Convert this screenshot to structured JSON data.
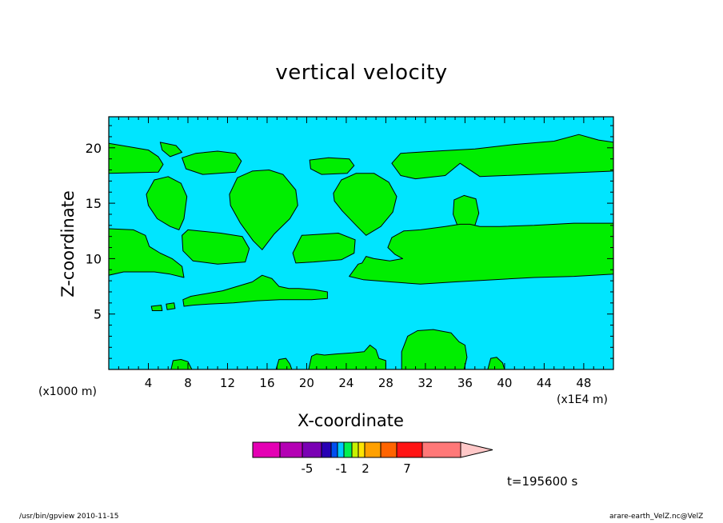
{
  "chart_data": {
    "type": "contour",
    "title": "vertical velocity",
    "xlabel": "X-coordinate",
    "ylabel": "Z-coordinate",
    "x_scale_label": "(x1000 m)",
    "x_unit_label": "(x1E4 m)",
    "time_label": "t=195600 s",
    "xlim": [
      0,
      51
    ],
    "ylim": [
      0,
      22.8
    ],
    "x_ticks": [
      4,
      8,
      12,
      16,
      20,
      24,
      28,
      32,
      36,
      40,
      44,
      48
    ],
    "y_ticks": [
      5,
      10,
      15,
      20
    ],
    "colors": {
      "background_field": "#00e5ff",
      "updraft_field": "#00ee00",
      "contour_line": "#000000"
    },
    "updraft_regions": [
      {
        "name": "upper band left",
        "polygon": [
          [
            0,
            20.4
          ],
          [
            2,
            20.1
          ],
          [
            4,
            19.8
          ],
          [
            5,
            19.2
          ],
          [
            5.5,
            18.5
          ],
          [
            5,
            17.8
          ],
          [
            0,
            17.7
          ]
        ]
      },
      {
        "name": "upper band right",
        "polygon": [
          [
            29.5,
            19.5
          ],
          [
            33,
            19.7
          ],
          [
            37,
            19.9
          ],
          [
            41,
            20.3
          ],
          [
            45,
            20.6
          ],
          [
            47.5,
            21.2
          ],
          [
            49.5,
            20.7
          ],
          [
            51,
            20.5
          ],
          [
            51,
            17.9
          ],
          [
            40,
            17.5
          ],
          [
            37.5,
            17.4
          ],
          [
            35.5,
            18.6
          ],
          [
            34,
            17.5
          ],
          [
            31,
            17.2
          ],
          [
            29.5,
            17.5
          ],
          [
            28.6,
            18.6
          ]
        ]
      },
      {
        "name": "cap near x=7",
        "polygon": [
          [
            5.2,
            20.5
          ],
          [
            6.8,
            20.2
          ],
          [
            7.4,
            19.6
          ],
          [
            6.2,
            19.2
          ],
          [
            5.4,
            19.8
          ]
        ]
      },
      {
        "name": "cap near x=12",
        "polygon": [
          [
            7.4,
            19.1
          ],
          [
            8.8,
            19.5
          ],
          [
            11,
            19.7
          ],
          [
            12.8,
            19.5
          ],
          [
            13.4,
            18.8
          ],
          [
            12.8,
            17.8
          ],
          [
            9.5,
            17.6
          ],
          [
            7.8,
            18.1
          ]
        ]
      },
      {
        "name": "cap near x=23",
        "polygon": [
          [
            20.3,
            18.9
          ],
          [
            22.2,
            19.1
          ],
          [
            24.3,
            19.0
          ],
          [
            24.8,
            18.4
          ],
          [
            24.1,
            17.7
          ],
          [
            21.5,
            17.6
          ],
          [
            20.4,
            18.1
          ]
        ]
      },
      {
        "name": "dome x=6",
        "polygon": [
          [
            3.8,
            15.8
          ],
          [
            4.6,
            17.1
          ],
          [
            6,
            17.4
          ],
          [
            7.3,
            16.8
          ],
          [
            7.9,
            15.6
          ],
          [
            7.6,
            13.6
          ],
          [
            7.1,
            12.6
          ],
          [
            6.2,
            12.9
          ],
          [
            4.9,
            13.6
          ],
          [
            4,
            14.8
          ]
        ]
      },
      {
        "name": "dome x=15.5",
        "polygon": [
          [
            12.2,
            15.8
          ],
          [
            13,
            17.3
          ],
          [
            14.5,
            17.9
          ],
          [
            16.2,
            18.0
          ],
          [
            17.6,
            17.6
          ],
          [
            18.9,
            16.2
          ],
          [
            19.1,
            14.8
          ],
          [
            18.3,
            13.6
          ],
          [
            16.7,
            12.2
          ],
          [
            15.5,
            10.8
          ],
          [
            14.6,
            11.6
          ],
          [
            13.3,
            13.2
          ],
          [
            12.3,
            14.8
          ]
        ]
      },
      {
        "name": "dome x=26",
        "polygon": [
          [
            22.7,
            15.9
          ],
          [
            23.5,
            17.1
          ],
          [
            25,
            17.7
          ],
          [
            26.8,
            17.7
          ],
          [
            28.3,
            16.9
          ],
          [
            29.1,
            15.6
          ],
          [
            28.7,
            14.2
          ],
          [
            27.5,
            12.9
          ],
          [
            26,
            12.1
          ],
          [
            25.1,
            12.9
          ],
          [
            23.6,
            14.3
          ],
          [
            22.8,
            15.2
          ]
        ]
      },
      {
        "name": "plume x=36",
        "polygon": [
          [
            34.9,
            15.3
          ],
          [
            35.9,
            15.7
          ],
          [
            37.1,
            15.4
          ],
          [
            37.4,
            14.1
          ],
          [
            36.9,
            12.7
          ],
          [
            36,
            11.2
          ],
          [
            35.4,
            12.6
          ],
          [
            34.8,
            14
          ]
        ]
      },
      {
        "name": "mid band left",
        "polygon": [
          [
            0,
            12.7
          ],
          [
            2.5,
            12.6
          ],
          [
            3.7,
            12.1
          ],
          [
            4.1,
            11.1
          ],
          [
            5.2,
            10.5
          ],
          [
            6.4,
            10.0
          ],
          [
            7.4,
            9.3
          ],
          [
            7.6,
            8.3
          ],
          [
            6.2,
            8.6
          ],
          [
            4.6,
            8.8
          ],
          [
            3.2,
            8.8
          ],
          [
            1.5,
            8.8
          ],
          [
            0,
            8.5
          ]
        ]
      },
      {
        "name": "mid block x=11",
        "polygon": [
          [
            7.4,
            12.1
          ],
          [
            8,
            12.6
          ],
          [
            11.3,
            12.3
          ],
          [
            13.5,
            12.0
          ],
          [
            14.2,
            10.9
          ],
          [
            13.8,
            9.7
          ],
          [
            11,
            9.5
          ],
          [
            8.5,
            9.8
          ],
          [
            7.5,
            10.7
          ]
        ]
      },
      {
        "name": "mid block x=22",
        "polygon": [
          [
            19.5,
            12.1
          ],
          [
            23.2,
            12.3
          ],
          [
            24.9,
            11.7
          ],
          [
            24.8,
            10.5
          ],
          [
            23.5,
            9.9
          ],
          [
            20.7,
            9.7
          ],
          [
            18.9,
            9.6
          ],
          [
            18.6,
            10.5
          ]
        ]
      },
      {
        "name": "mid band right",
        "polygon": [
          [
            25.2,
            9.5
          ],
          [
            24.3,
            8.4
          ],
          [
            25.7,
            8.1
          ],
          [
            28.5,
            7.9
          ],
          [
            31.5,
            7.7
          ],
          [
            35,
            7.9
          ],
          [
            39,
            8.1
          ],
          [
            43,
            8.3
          ],
          [
            47,
            8.4
          ],
          [
            51,
            8.6
          ],
          [
            51,
            13.2
          ],
          [
            47,
            13.2
          ],
          [
            43,
            13.0
          ],
          [
            39.5,
            12.9
          ],
          [
            37.5,
            12.9
          ],
          [
            36.5,
            13.1
          ],
          [
            35.5,
            13.1
          ],
          [
            34,
            12.9
          ],
          [
            31.5,
            12.6
          ],
          [
            29.8,
            12.5
          ],
          [
            28.6,
            11.9
          ],
          [
            28.2,
            11.0
          ],
          [
            28.9,
            10.4
          ],
          [
            29.7,
            10.0
          ],
          [
            28.4,
            9.8
          ],
          [
            26.8,
            10.0
          ],
          [
            26,
            10.2
          ],
          [
            25.6,
            9.6
          ]
        ]
      },
      {
        "name": "diagonal band",
        "polygon": [
          [
            7.5,
            6.3
          ],
          [
            8.3,
            6.6
          ],
          [
            11.5,
            7.1
          ],
          [
            14.5,
            7.9
          ],
          [
            15.5,
            8.5
          ],
          [
            16.5,
            8.2
          ],
          [
            17.2,
            7.5
          ],
          [
            18.2,
            7.3
          ],
          [
            19.2,
            7.3
          ],
          [
            20.8,
            7.2
          ],
          [
            22.1,
            7.0
          ],
          [
            22.1,
            6.4
          ],
          [
            20.5,
            6.3
          ],
          [
            18.7,
            6.3
          ],
          [
            17.3,
            6.3
          ],
          [
            15,
            6.2
          ],
          [
            12.6,
            6.0
          ],
          [
            10.1,
            5.9
          ],
          [
            8.5,
            5.8
          ],
          [
            7.6,
            5.7
          ]
        ]
      },
      {
        "name": "speck x=6",
        "polygon": [
          [
            5.8,
            5.9
          ],
          [
            6.6,
            6.0
          ],
          [
            6.7,
            5.5
          ],
          [
            5.9,
            5.4
          ]
        ]
      },
      {
        "name": "speck x=4.6",
        "polygon": [
          [
            4.3,
            5.7
          ],
          [
            5.3,
            5.8
          ],
          [
            5.4,
            5.3
          ],
          [
            4.4,
            5.3
          ]
        ]
      },
      {
        "name": "foot x=7",
        "polygon": [
          [
            6.3,
            0
          ],
          [
            6.5,
            0.8
          ],
          [
            7.3,
            0.9
          ],
          [
            8,
            0.7
          ],
          [
            8.4,
            0
          ]
        ]
      },
      {
        "name": "foot x=18",
        "polygon": [
          [
            16.9,
            0
          ],
          [
            17.2,
            0.9
          ],
          [
            17.9,
            1.0
          ],
          [
            18.3,
            0.5
          ],
          [
            18.5,
            0
          ]
        ]
      },
      {
        "name": "foot x=20-22",
        "polygon": [
          [
            20.5,
            1.2
          ],
          [
            21,
            1.4
          ],
          [
            21.8,
            1.3
          ],
          [
            23,
            1.4
          ],
          [
            24.6,
            1.5
          ],
          [
            25.8,
            1.6
          ],
          [
            26.4,
            2.2
          ],
          [
            27,
            1.8
          ],
          [
            27.3,
            1.0
          ],
          [
            28,
            0.8
          ],
          [
            28,
            0
          ],
          [
            20.2,
            0
          ]
        ]
      },
      {
        "name": "foot x=29-34",
        "polygon": [
          [
            29.6,
            0
          ],
          [
            29.6,
            1.6
          ],
          [
            30.2,
            3.0
          ],
          [
            31.2,
            3.5
          ],
          [
            32.8,
            3.6
          ],
          [
            34.6,
            3.3
          ],
          [
            35.4,
            2.5
          ],
          [
            36,
            2.2
          ],
          [
            36.2,
            1.1
          ],
          [
            35.9,
            0
          ]
        ]
      },
      {
        "name": "foot x=39",
        "polygon": [
          [
            38.3,
            0
          ],
          [
            38.6,
            1.0
          ],
          [
            39.2,
            1.1
          ],
          [
            39.8,
            0.6
          ],
          [
            40.0,
            0
          ]
        ]
      }
    ],
    "colorbar": {
      "colors": [
        "#e400b4",
        "#b400b4",
        "#7a00b4",
        "#2800b4",
        "#004ef0",
        "#00c8ff",
        "#00f050",
        "#c8f000",
        "#ffe400",
        "#ffa000",
        "#ff6400",
        "#ff1414",
        "#ff7878",
        "#ffc8c8"
      ],
      "tick_labels": [
        "-5",
        "-1",
        "2",
        "7"
      ]
    }
  },
  "footer": {
    "left": "/usr/bin/gpview   2010-11-15",
    "right": "arare-earth_VelZ.nc@VelZ"
  }
}
